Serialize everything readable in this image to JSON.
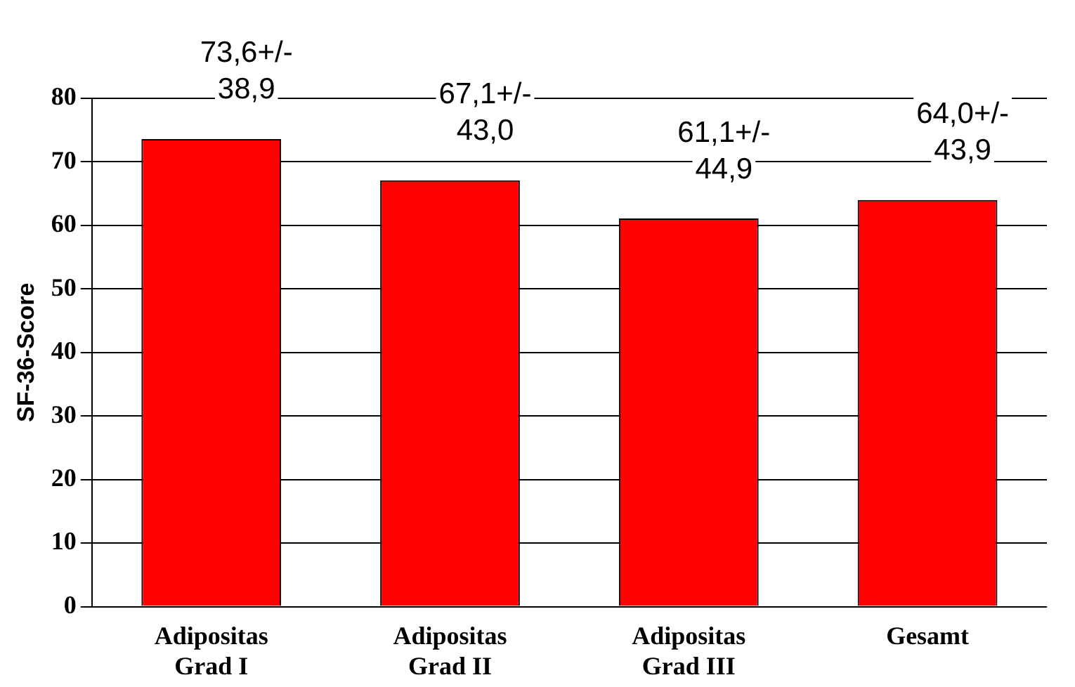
{
  "chart_data": {
    "type": "bar",
    "ylabel": "SF-36-Score",
    "categories": [
      "Adipositas\nGrad I",
      "Adipositas\nGrad II",
      "Adipositas\nGrad III",
      "Gesamt"
    ],
    "values": [
      73.6,
      67.1,
      61.1,
      64.0
    ],
    "value_labels": [
      "73,6+/-\n38,9",
      "67,1+/-\n43,0",
      "61,1+/-\n44,9",
      "64,0+/-\n43,9"
    ],
    "color": "#ff0000",
    "ylim": [
      0,
      80
    ],
    "yticks": [
      0,
      10,
      20,
      30,
      40,
      50,
      60,
      70,
      80
    ],
    "grid": "y",
    "legend": false
  }
}
